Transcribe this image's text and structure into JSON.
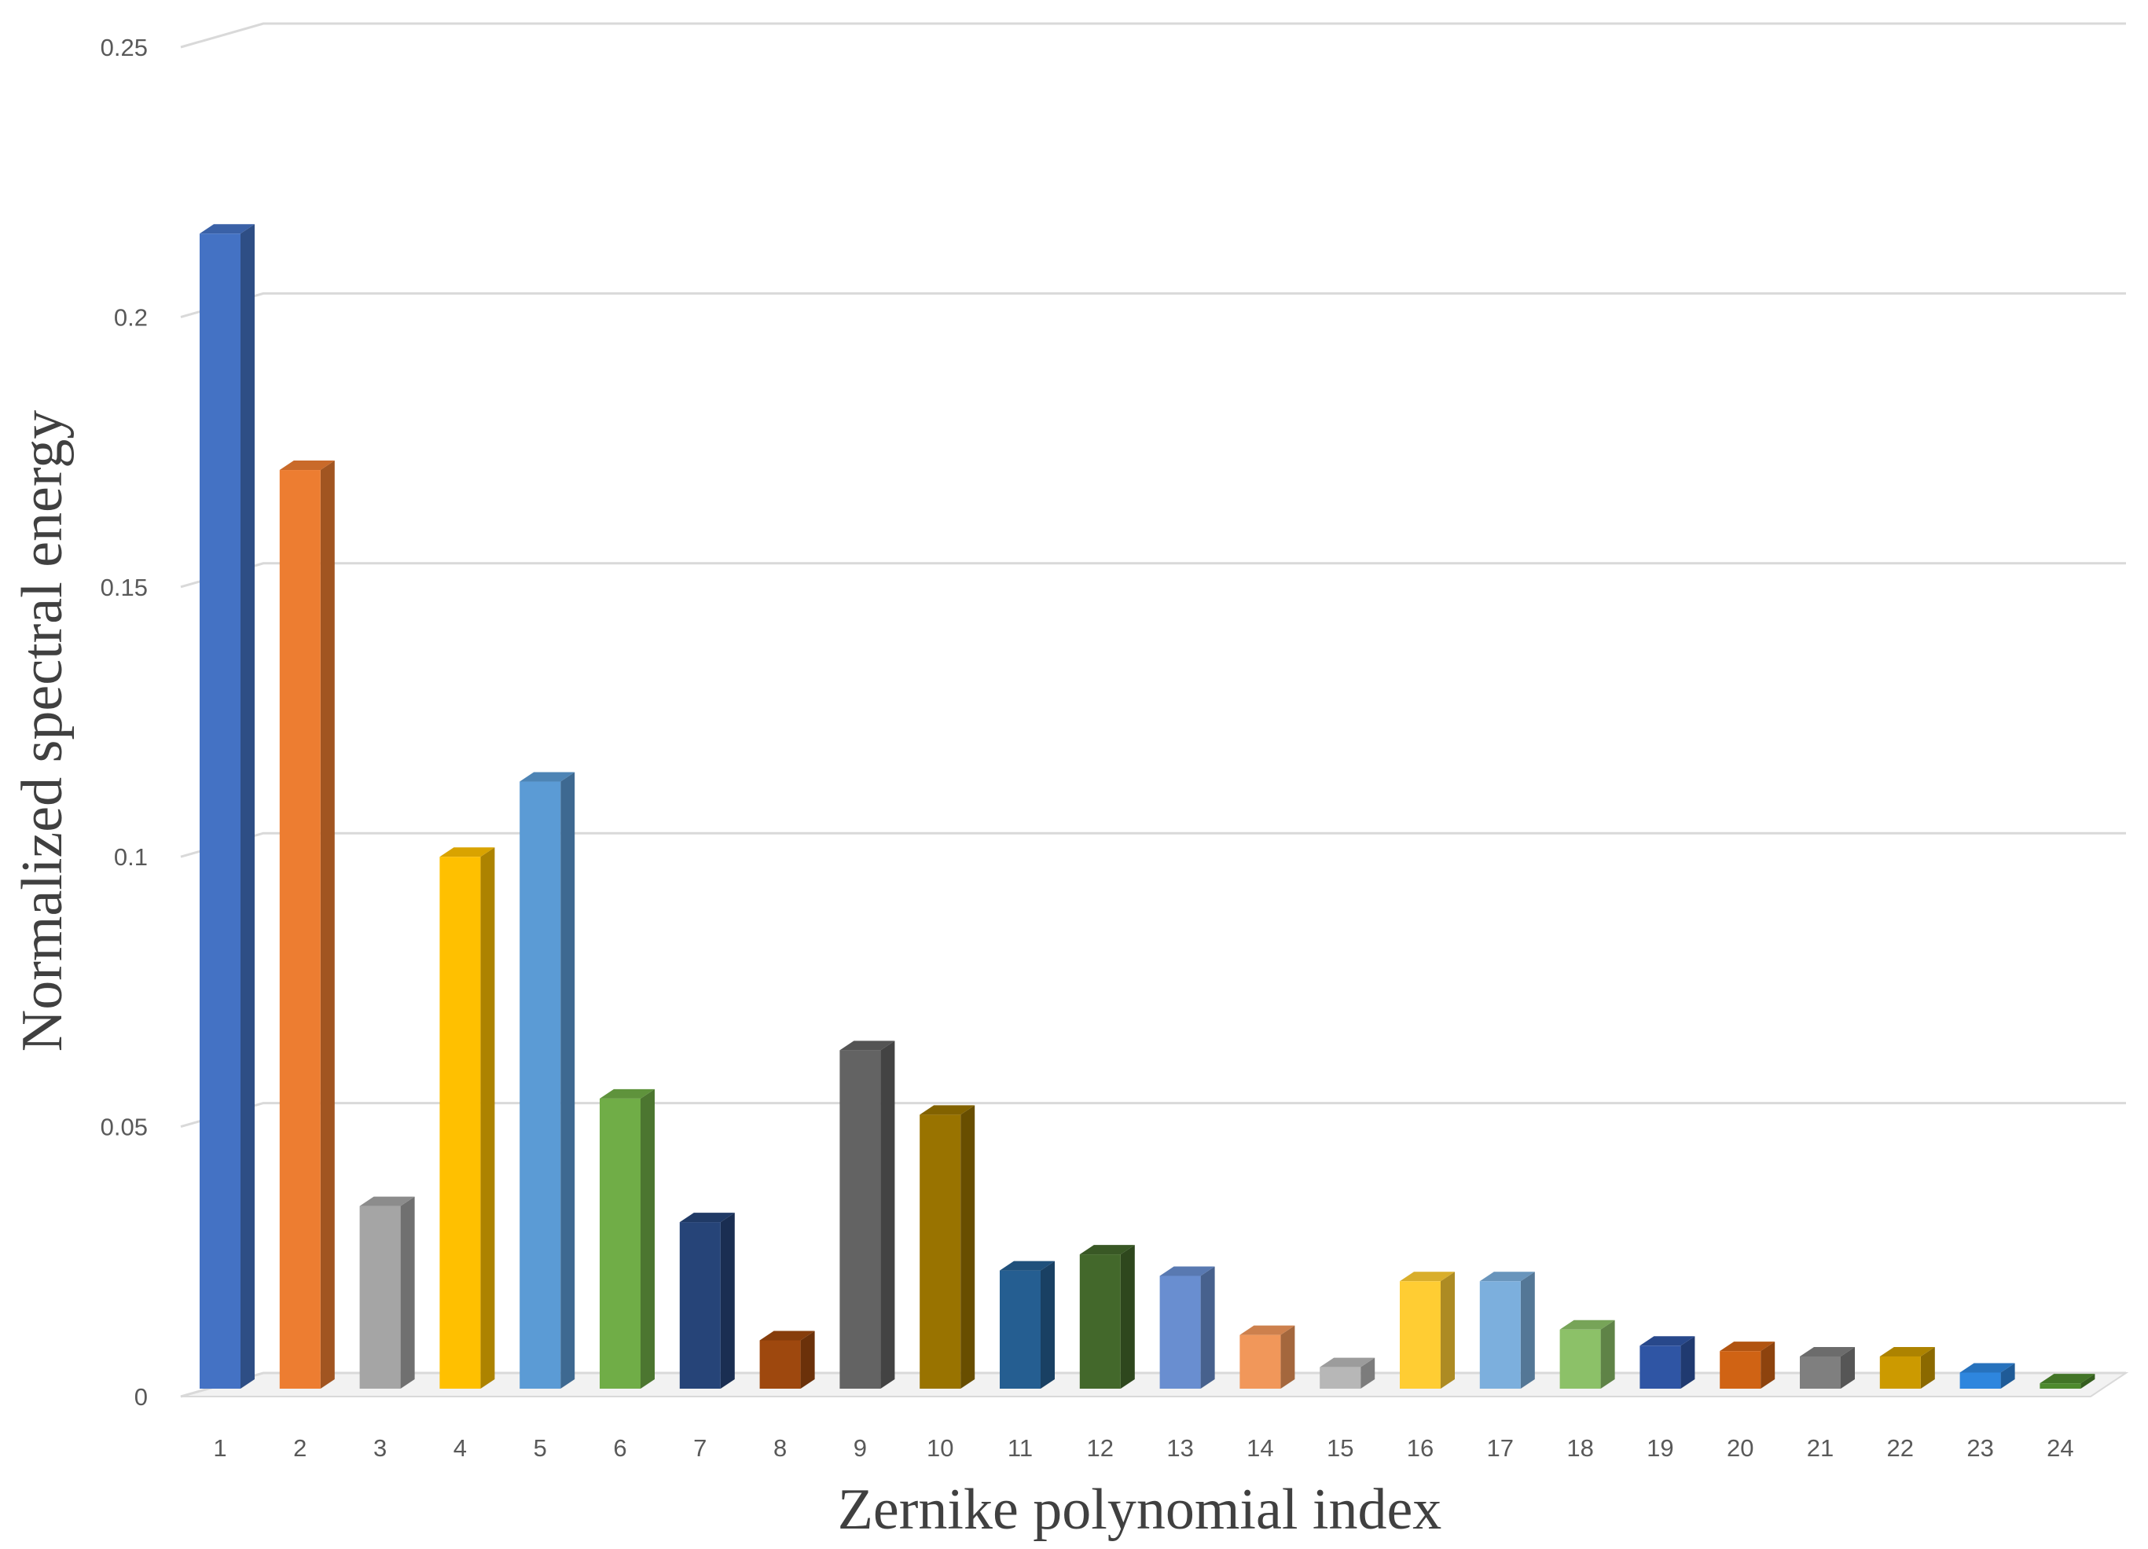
{
  "chart_data": {
    "type": "bar",
    "title": "",
    "xlabel": "Zernike polynomial index",
    "ylabel": "Normalized spectral energy",
    "categories": [
      "1",
      "2",
      "3",
      "4",
      "5",
      "6",
      "7",
      "8",
      "9",
      "10",
      "11",
      "12",
      "13",
      "14",
      "15",
      "16",
      "17",
      "18",
      "19",
      "20",
      "21",
      "22",
      "23",
      "24"
    ],
    "values": [
      0.215,
      0.171,
      0.034,
      0.099,
      0.113,
      0.054,
      0.031,
      0.009,
      0.063,
      0.051,
      0.022,
      0.025,
      0.021,
      0.01,
      0.004,
      0.02,
      0.02,
      0.011,
      0.008,
      0.007,
      0.006,
      0.006,
      0.003,
      0.001
    ],
    "ylim": [
      0,
      0.25
    ],
    "yticks": [
      "0",
      "0.05",
      "0.1",
      "0.15",
      "0.2",
      "0.25"
    ],
    "ytick_values": [
      0,
      0.05,
      0.1,
      0.15,
      0.2,
      0.25
    ],
    "grid": true,
    "legend": "none",
    "style": "3d-column",
    "colors": [
      "#4472C4",
      "#ED7D31",
      "#A5A5A5",
      "#FFC000",
      "#5B9BD5",
      "#70AD47",
      "#264478",
      "#9E480E",
      "#636363",
      "#997300",
      "#255E91",
      "#43682B",
      "#698ED0",
      "#F1975A",
      "#B7B7B7",
      "#FFCD33",
      "#7CAFDD",
      "#8CC168",
      "#2F55A4",
      "#D06314",
      "#7F7F7F",
      "#CC9A00",
      "#2E86DE",
      "#4E8A2E"
    ]
  }
}
